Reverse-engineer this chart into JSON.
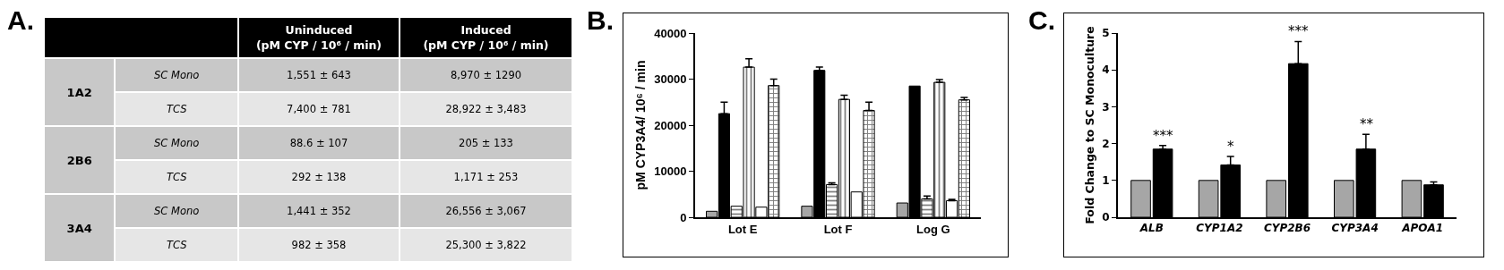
{
  "chart_data": [
    {
      "type": "other",
      "title": "A.",
      "categories": [
        null,
        null,
        "Uninduced\n(pM CYP / 10⁶ / min)",
        "Induced\n(pM CYP / 10⁶ / min)"
      ],
      "cell_labels": [
        [
          "1A2",
          "SC Mono",
          "1,551 ± 643",
          "8,970 ± 1290"
        ],
        [
          null,
          "TCS",
          "7,400 ± 781",
          "28,922 ± 3,483"
        ],
        [
          "2B6",
          "SC Mono",
          "88.6 ± 107",
          "205 ± 133"
        ],
        [
          null,
          "TCS",
          "292 ± 138",
          "1,171 ± 253"
        ],
        [
          "3A4",
          "SC Mono",
          "1,441 ± 352",
          "26,556 ± 3,067"
        ],
        [
          null,
          "TCS",
          "982 ± 358",
          "25,300 ± 3,822"
        ]
      ]
    },
    {
      "type": "bar",
      "title": "B.",
      "ylabel": "pM CYP3A4/ 10⁶ / min",
      "categories": [
        "Lot E",
        "Lot F",
        "Log G"
      ],
      "ylim": [
        0,
        40000
      ],
      "yticks": [
        0,
        10000,
        20000,
        30000,
        40000
      ],
      "grid": false,
      "series": [
        {
          "color": "#a6a6a6",
          "values": [
            1300,
            2400,
            3100
          ]
        },
        {
          "color": "#000000",
          "values": [
            22500,
            31900,
            28500
          ],
          "errors": [
            2500,
            700,
            null
          ]
        },
        {
          "color": "#000000",
          "values": [
            2400,
            7100,
            4000
          ],
          "errors": [
            null,
            400,
            600
          ]
        },
        {
          "color": "#000000",
          "values": [
            32600,
            25600,
            29300
          ],
          "errors": [
            1800,
            900,
            600
          ]
        },
        {
          "color": "#ffffff",
          "values": [
            2200,
            5500,
            3600
          ],
          "errors": [
            null,
            null,
            300
          ]
        },
        {
          "color": "#000000",
          "values": [
            28600,
            23200,
            25500
          ],
          "errors": [
            1400,
            1800,
            500
          ]
        }
      ]
    },
    {
      "type": "bar",
      "title": "C.",
      "ylabel": "Fold Change to SC Monoculture",
      "categories": [
        "ALB",
        "CYP1A2",
        "CYP2B6",
        "CYP3A4",
        "APOA1"
      ],
      "ylim": [
        0,
        5
      ],
      "yticks": [
        0,
        1,
        2,
        3,
        4,
        5
      ],
      "grid": false,
      "series": [
        {
          "color": "#a6a6a6",
          "values": [
            1,
            1,
            1,
            1,
            1
          ]
        },
        {
          "color": "#000000",
          "values": [
            1.85,
            1.42,
            4.17,
            1.85,
            0.88
          ],
          "errors": [
            0.1,
            0.23,
            0.6,
            0.4,
            0.08
          ]
        }
      ],
      "annotations": [
        {
          "text": "***",
          "x": "ALB",
          "y": 1.85
        },
        {
          "text": "*",
          "x": "CYP1A2",
          "y": 1.42
        },
        {
          "text": "***",
          "x": "CYP2B6",
          "y": 4.17
        },
        {
          "text": "**",
          "x": "CYP3A4",
          "y": 1.85
        }
      ]
    }
  ]
}
